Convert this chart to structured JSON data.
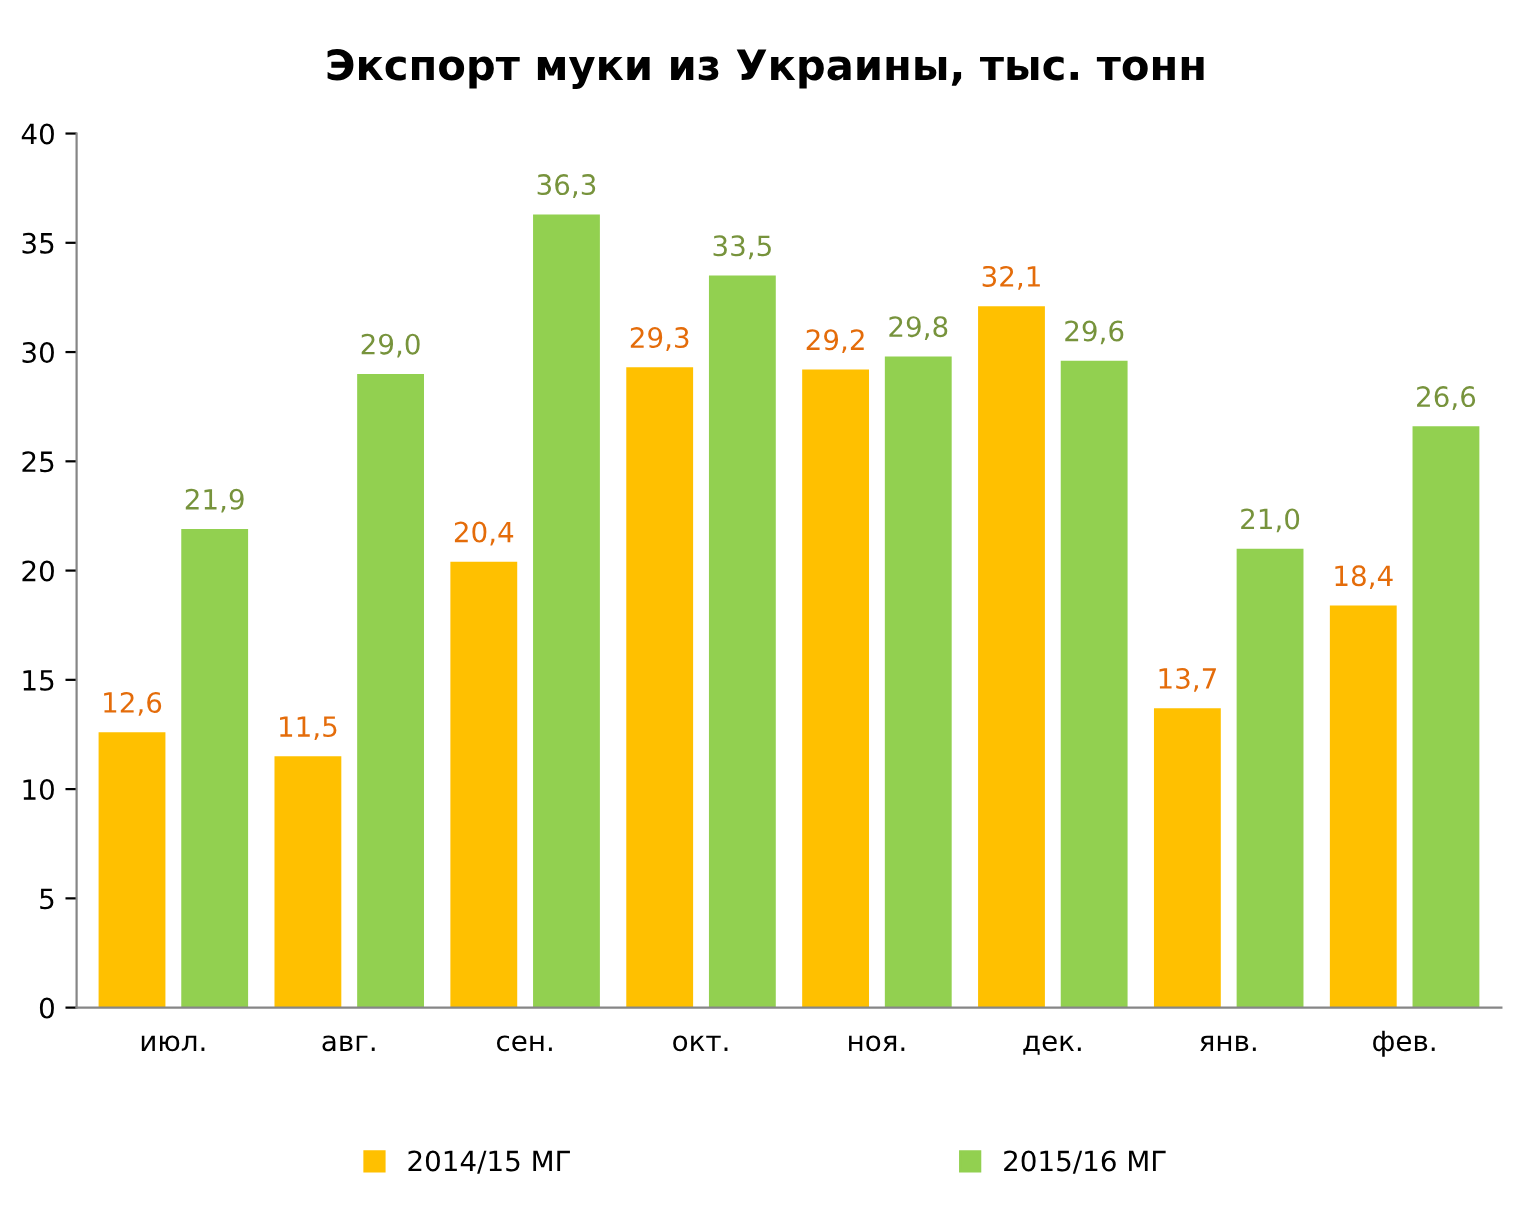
{
  "chart_data": {
    "type": "bar",
    "title": "Экспорт муки из Украины, тыс. тонн",
    "categories": [
      "июл.",
      "авг.",
      "сен.",
      "окт.",
      "ноя.",
      "дек.",
      "янв.",
      "фев."
    ],
    "series": [
      {
        "name": "2014/15 МГ",
        "color": "#ffc000",
        "values": [
          12.6,
          11.5,
          20.4,
          29.3,
          29.2,
          32.1,
          13.7,
          18.4
        ],
        "value_labels": [
          "12,6",
          "11,5",
          "20,4",
          "29,3",
          "29,2",
          "32,1",
          "13,7",
          "18,4"
        ]
      },
      {
        "name": "2015/16 МГ",
        "color": "#92d050",
        "values": [
          21.9,
          29.0,
          36.3,
          33.5,
          29.8,
          29.6,
          21.0,
          26.6
        ],
        "value_labels": [
          "21,9",
          "29,0",
          "36,3",
          "33,5",
          "29,8",
          "29,6",
          "21,0",
          "26,6"
        ]
      }
    ],
    "ylim": [
      0,
      40
    ],
    "yticks": [
      0,
      5,
      10,
      15,
      20,
      25,
      30,
      35,
      40
    ],
    "grid": false,
    "legend": "bottom"
  }
}
